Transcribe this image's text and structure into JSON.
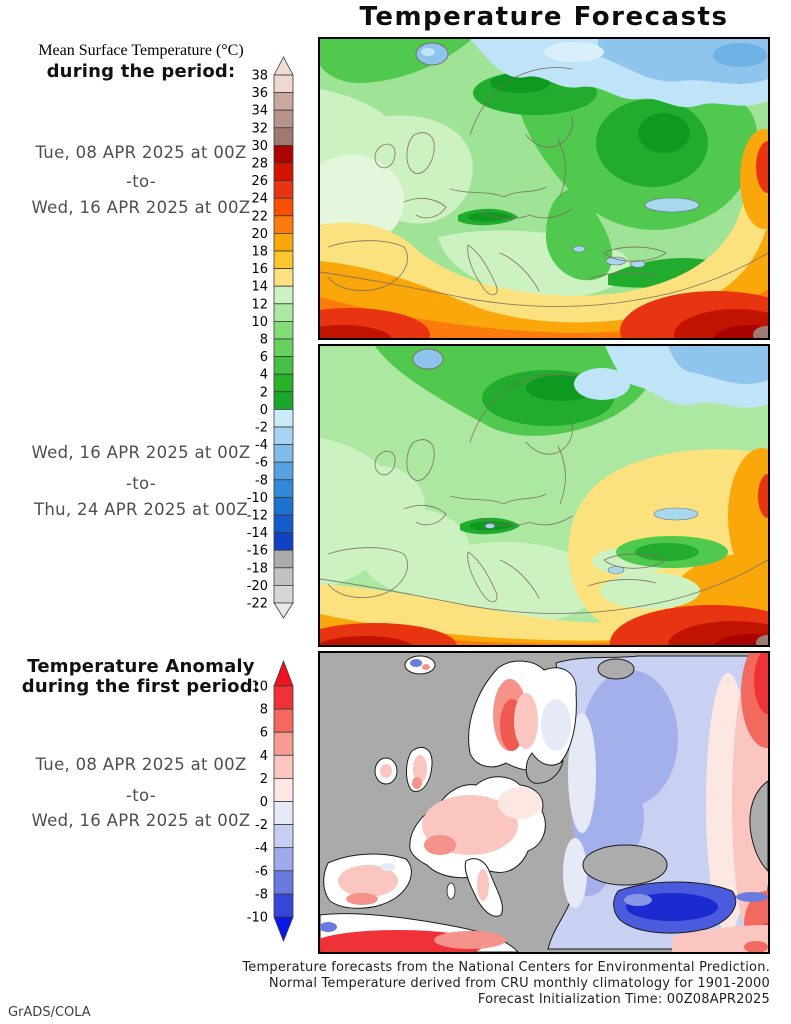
{
  "header": {
    "title": "Temperature Forecasts"
  },
  "left_column": {
    "forecast1": {
      "heading_serif": "Mean Surface Temperature (°C)",
      "heading_bold": "during the period:",
      "date_from": "Tue, 08 APR 2025 at 00Z",
      "separator": "-to-",
      "date_to": "Wed, 16 APR 2025 at 00Z"
    },
    "forecast2": {
      "date_from": "Wed, 16 APR 2025 at 00Z",
      "separator": "-to-",
      "date_to": "Thu, 24 APR 2025 at 00Z"
    },
    "anomaly": {
      "heading_bold_line1": "Temperature Anomaly",
      "heading_bold_line2": "during the first period:",
      "date_from": "Tue, 08 APR 2025 at 00Z",
      "separator": "-to-",
      "date_to": "Wed, 16 APR 2025 at 00Z"
    }
  },
  "colorbars": {
    "temperature": {
      "unit": "°C",
      "ticks": [
        38,
        36,
        34,
        32,
        30,
        28,
        26,
        24,
        22,
        20,
        18,
        16,
        14,
        12,
        10,
        8,
        6,
        4,
        2,
        0,
        -2,
        -4,
        -6,
        -8,
        -10,
        -12,
        -14,
        -16,
        -18,
        -20,
        -22
      ],
      "cell_colors_top_to_bottom": [
        "#EFD8CF",
        "#CBA89F",
        "#B8958C",
        "#9E7A70",
        "#AB0300",
        "#D21400",
        "#E93412",
        "#F94F02",
        "#FB7B0D",
        "#F9A70B",
        "#FBC62E",
        "#FBE27E",
        "#CDF2C2",
        "#ACE8A2",
        "#83DC78",
        "#68D15E",
        "#45C246",
        "#28B228",
        "#1CA62B",
        "#C8EBF7",
        "#A5D5F2",
        "#7FBCEA",
        "#57A3E2",
        "#3389D9",
        "#1C71D1",
        "#155AC9",
        "#0F41C1",
        "#ABABAB",
        "#C2C2C2",
        "#D6D6D6"
      ],
      "arrow_top_color": "#EFDCD4",
      "arrow_bottom_color": "#E9E9E9"
    },
    "anomaly": {
      "unit": "°C",
      "ticks": [
        10,
        8,
        6,
        4,
        2,
        0,
        -2,
        -4,
        -6,
        -8,
        -10
      ],
      "cell_colors_top_to_bottom": [
        "#EF3238",
        "#F4685F",
        "#F89B92",
        "#FBC6C0",
        "#FEE7E4",
        "#E6EAF7",
        "#C6CEF1",
        "#9EAAE9",
        "#6A7BE0",
        "#3646D7"
      ],
      "arrow_top_color": "#F01220",
      "arrow_bottom_color": "#0A16E8"
    }
  },
  "footer": {
    "lines": [
      "Temperature forecasts from the National Centers for Environmental Prediction.",
      "Normal Temperature derived from CRU monthly climatology for 1901-2000",
      "Forecast Initialization Time: 00Z08APR2025"
    ]
  },
  "credit": "GrADS/COLA",
  "chart_data": [
    {
      "type": "heatmap",
      "title": "Mean Surface Temperature (°C), Tue 08 APR 2025 00Z to Wed 16 APR 2025 00Z",
      "region": "Europe / North Africa / western Russia",
      "unit": "°C",
      "scale_ticks": [
        38,
        36,
        34,
        32,
        30,
        28,
        26,
        24,
        22,
        20,
        18,
        16,
        14,
        12,
        10,
        8,
        6,
        4,
        2,
        0,
        -2,
        -4,
        -6,
        -8,
        -10,
        -12,
        -14,
        -16,
        -18,
        -20,
        -22
      ],
      "qualitative_pattern": "Arctic coast and far-north Russia -2 to -8; Scandinavia and western Russia 0 to 8; central and western Europe 8 to 14; Iberia and Mediterranean 14 to 22; North Africa and Middle East 22 to 30 with hottest (28-30+) in bottom-left and bottom-right corners"
    },
    {
      "type": "heatmap",
      "title": "Mean Surface Temperature (°C), Wed 16 APR 2025 00Z to Thu 24 APR 2025 00Z",
      "region": "Europe / North Africa / western Russia",
      "unit": "°C",
      "scale_ticks": [
        38,
        36,
        34,
        32,
        30,
        28,
        26,
        24,
        22,
        20,
        18,
        16,
        14,
        12,
        10,
        8,
        6,
        4,
        2,
        0,
        -2,
        -4,
        -6,
        -8,
        -10,
        -12,
        -14,
        -16,
        -18,
        -20,
        -22
      ],
      "qualitative_pattern": "Similar but warmer than first period: Arctic still -2 to -8, Scandinavia 2 to 8, central Europe 10 to 14, eastern Europe and Ukraine 14 to 18, Mediterranean 16 to 22, North Africa and Middle East 22 to 32"
    },
    {
      "type": "heatmap",
      "title": "Temperature Anomaly (°C) during the first period",
      "region": "Europe (land only, sea masked gray)",
      "unit": "°C",
      "scale_ticks": [
        10,
        8,
        6,
        4,
        2,
        0,
        -2,
        -4,
        -6,
        -8,
        -10
      ],
      "qualitative_pattern": "Positive anomaly +2 to +6 over western Europe, Iberia, UK, Scandinavia, North Africa and far-eastern edge; negative anomaly -2 to -4 over eastern Europe and western Russia; strong negative -6 to -10 over Turkey and the Caucasus"
    }
  ]
}
